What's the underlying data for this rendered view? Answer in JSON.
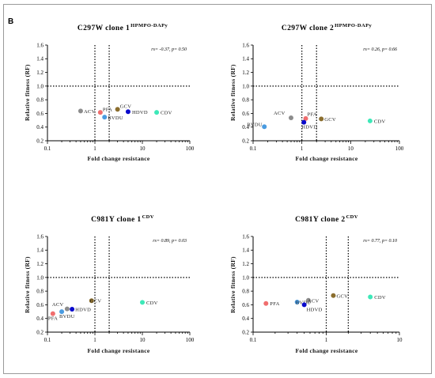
{
  "figure": {
    "letter": "B",
    "colors": {
      "ACV": "#8c8c8c",
      "PFA": "#f06e6e",
      "BVDU": "#4a9be0",
      "GCV": "#8b6e2e",
      "HDVD": "#0a0acc",
      "CDV": "#3de8b8"
    }
  },
  "chart_data": [
    {
      "type": "scatter",
      "title": "C297W  clone 1",
      "title_sup": "HPMPO-DAPy",
      "stat_text": "rs= -0.37, p= 0.50",
      "xlabel": "Fold change resistance",
      "ylabel": "Relative fitness (RF)",
      "xscale": "log",
      "xlim": [
        0.1,
        100
      ],
      "ylim": [
        0.2,
        1.6
      ],
      "xticks": [
        "0.1",
        "1",
        "10",
        "100"
      ],
      "yticks": [
        "0.2",
        "0.4",
        "0.6",
        "0.8",
        "1.0",
        "1.2",
        "1.4",
        "1.6"
      ],
      "ref_h": 1.0,
      "ref_v": [
        1,
        2
      ],
      "points": [
        {
          "name": "ACV",
          "x": 0.5,
          "y": 0.635,
          "label": "ACV"
        },
        {
          "name": "PFA",
          "x": 1.3,
          "y": 0.615,
          "label": "PFA"
        },
        {
          "name": "BVDU",
          "x": 1.6,
          "y": 0.545,
          "label": "BVDU"
        },
        {
          "name": "GCV",
          "x": 3.0,
          "y": 0.66,
          "label": "GCV"
        },
        {
          "name": "HDVD",
          "x": 5.0,
          "y": 0.625,
          "label": "HDVD"
        },
        {
          "name": "CDV",
          "x": 20,
          "y": 0.615,
          "label": "CDV"
        }
      ]
    },
    {
      "type": "scatter",
      "title": "C297W  clone 2",
      "title_sup": "HPMPO-DAPy",
      "stat_text": "rs= 0.26, p= 0.66",
      "xlabel": "Fold change resistance",
      "ylabel": "Relative fitness (RF)",
      "xscale": "log",
      "xlim": [
        0.1,
        100
      ],
      "ylim": [
        0.2,
        1.6
      ],
      "xticks": [
        "0.1",
        "1",
        "10",
        "100"
      ],
      "yticks": [
        "0.2",
        "0.4",
        "0.6",
        "0.8",
        "1.0",
        "1.2",
        "1.4",
        "1.6"
      ],
      "ref_h": 1.0,
      "ref_v": [
        1,
        2
      ],
      "points": [
        {
          "name": "BVDU",
          "x": 0.17,
          "y": 0.405,
          "label": "BVDU"
        },
        {
          "name": "ACV",
          "x": 0.6,
          "y": 0.535,
          "label": "ACV"
        },
        {
          "name": "PFA",
          "x": 1.2,
          "y": 0.525,
          "label": "PFA"
        },
        {
          "name": "HDVD",
          "x": 1.1,
          "y": 0.47,
          "label": "HDVD"
        },
        {
          "name": "GCV",
          "x": 2.5,
          "y": 0.52,
          "label": "GCV"
        },
        {
          "name": "CDV",
          "x": 25,
          "y": 0.49,
          "label": "CDV"
        }
      ]
    },
    {
      "type": "scatter",
      "title": "C981Y  clone 1",
      "title_sup": "CDV",
      "stat_text": "rs= 0.89, p= 0.03",
      "xlabel": "Fold change resistance",
      "ylabel": "Relative fitness (RF)",
      "xscale": "log",
      "xlim": [
        0.1,
        100
      ],
      "ylim": [
        0.2,
        1.6
      ],
      "xticks": [
        "0.1",
        "1",
        "10",
        "100"
      ],
      "yticks": [
        "0.2",
        "0.4",
        "0.6",
        "0.8",
        "1.0",
        "1.2",
        "1.4",
        "1.6"
      ],
      "ref_h": 1.0,
      "ref_v": [
        1,
        2
      ],
      "points": [
        {
          "name": "PFA",
          "x": 0.13,
          "y": 0.47,
          "label": "PFA"
        },
        {
          "name": "BVDU",
          "x": 0.2,
          "y": 0.5,
          "label": "BVDU"
        },
        {
          "name": "ACV",
          "x": 0.26,
          "y": 0.54,
          "label": "ACV"
        },
        {
          "name": "HDVD",
          "x": 0.33,
          "y": 0.535,
          "label": "HDVD"
        },
        {
          "name": "GCV",
          "x": 0.85,
          "y": 0.66,
          "label": "GCV"
        },
        {
          "name": "CDV",
          "x": 10,
          "y": 0.635,
          "label": "CDV"
        }
      ]
    },
    {
      "type": "scatter",
      "title": "C981Y  clone 2",
      "title_sup": "CDV",
      "stat_text": "rs= 0.77, p= 0.10",
      "xlabel": "Fold change resistance",
      "ylabel": "Relative fitness (RF)",
      "xscale": "log",
      "xlim": [
        0.1,
        10
      ],
      "ylim": [
        0.2,
        1.6
      ],
      "xticks": [
        "0.1",
        "1",
        "10"
      ],
      "yticks": [
        "0.2",
        "0.4",
        "0.6",
        "0.8",
        "1.0",
        "1.2",
        "1.4",
        "1.6"
      ],
      "ref_h": 1.0,
      "ref_v": [
        1,
        2
      ],
      "points": [
        {
          "name": "PFA",
          "x": 0.15,
          "y": 0.62,
          "label": "PFA"
        },
        {
          "name": "BVDU",
          "x": 0.4,
          "y": 0.64,
          "label": "BVDU"
        },
        {
          "name": "ACV",
          "x": 0.57,
          "y": 0.665,
          "label": "ACV"
        },
        {
          "name": "HDVD",
          "x": 0.5,
          "y": 0.6,
          "label": "HDVD"
        },
        {
          "name": "GCV",
          "x": 1.25,
          "y": 0.735,
          "label": "GCV"
        },
        {
          "name": "CDV",
          "x": 4.0,
          "y": 0.715,
          "label": "CDV"
        }
      ]
    }
  ]
}
